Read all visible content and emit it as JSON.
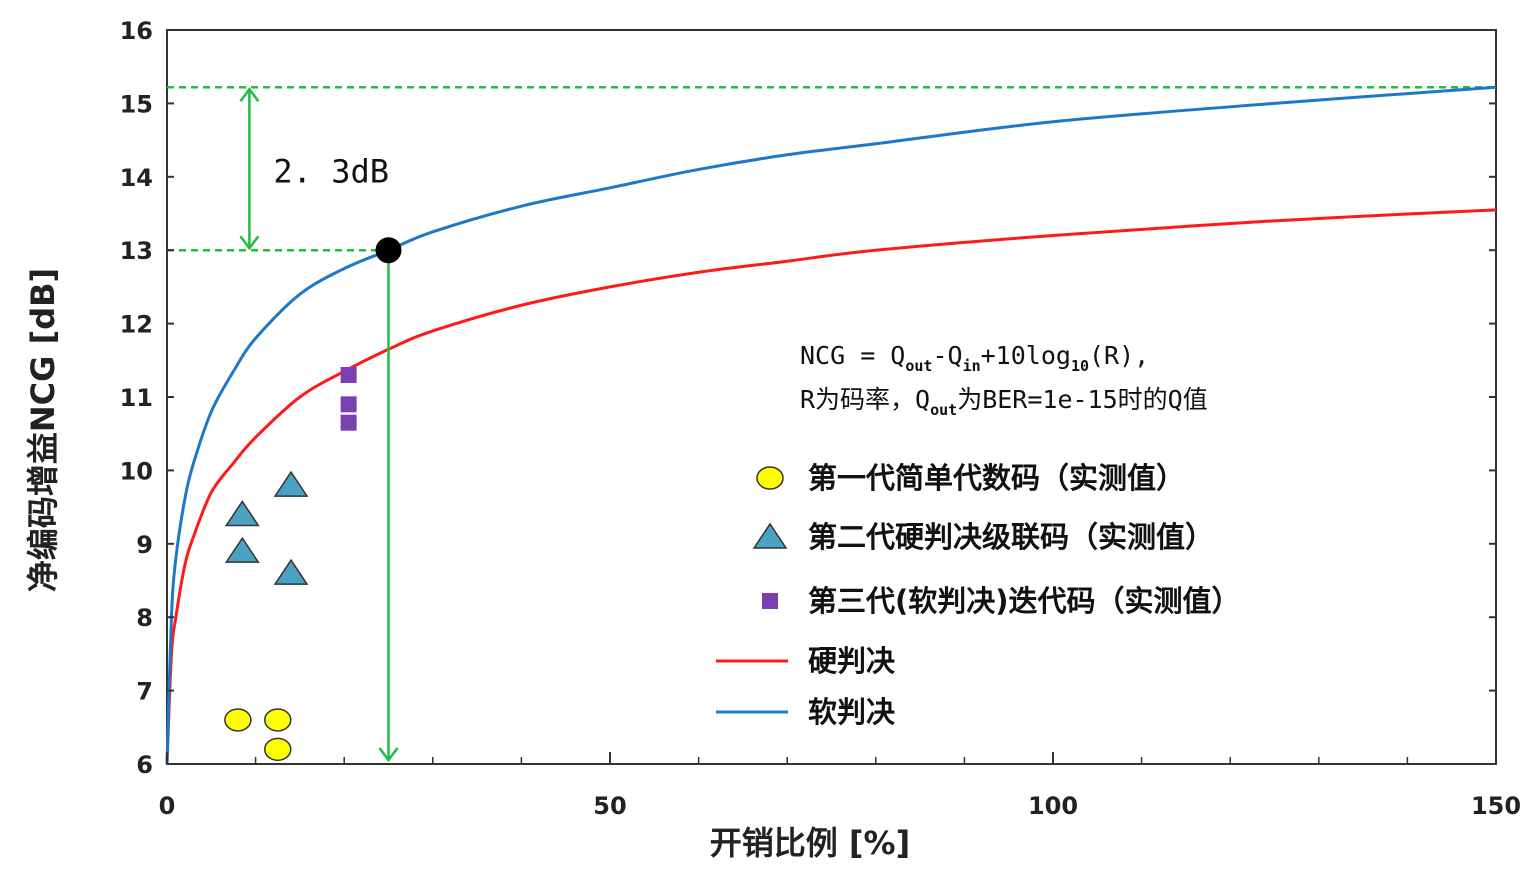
{
  "chart_data": {
    "type": "line",
    "title": "",
    "xlabel": "开销比例 [%]",
    "ylabel": "净编码增益NCG [dB]",
    "xlim": [
      0,
      150
    ],
    "ylim": [
      6,
      16
    ],
    "x_ticks": [
      0,
      50,
      100,
      150
    ],
    "y_ticks": [
      6,
      7,
      8,
      9,
      10,
      11,
      12,
      13,
      14,
      15,
      16
    ],
    "grid": false,
    "series": [
      {
        "name": "硬判决",
        "type": "line",
        "color": "#ff1a1a",
        "x": [
          0,
          0.5,
          1,
          2,
          3,
          5,
          7.5,
          10,
          15,
          20,
          25,
          30,
          40,
          50,
          60,
          70,
          80,
          100,
          125,
          150
        ],
        "y": [
          6.0,
          7.5,
          8.0,
          8.7,
          9.1,
          9.7,
          10.1,
          10.45,
          11.0,
          11.35,
          11.65,
          11.9,
          12.25,
          12.5,
          12.7,
          12.85,
          13.0,
          13.2,
          13.4,
          13.55
        ]
      },
      {
        "name": "软判决",
        "type": "line",
        "color": "#1e78c8",
        "x": [
          0,
          0.5,
          1,
          2,
          3,
          5,
          7.5,
          10,
          15,
          20,
          25,
          30,
          40,
          50,
          60,
          70,
          80,
          100,
          125,
          150
        ],
        "y": [
          6.0,
          8.0,
          8.8,
          9.6,
          10.1,
          10.8,
          11.35,
          11.8,
          12.4,
          12.75,
          13.0,
          13.25,
          13.6,
          13.85,
          14.1,
          14.3,
          14.45,
          14.75,
          15.0,
          15.22
        ]
      },
      {
        "name": "第一代简单代数码（实测值）",
        "type": "scatter",
        "marker": "circle",
        "color": "#ffff00",
        "x": [
          8,
          12.5,
          12.5
        ],
        "y": [
          6.6,
          6.6,
          6.2
        ]
      },
      {
        "name": "第二代硬判决级联码（实测值）",
        "type": "scatter",
        "marker": "triangle",
        "color": "#4ba3c3",
        "x": [
          8.5,
          8.5,
          14,
          14
        ],
        "y": [
          9.4,
          8.9,
          9.8,
          8.6
        ]
      },
      {
        "name": "第三代(软判决)迭代码（实测值）",
        "type": "scatter",
        "marker": "square",
        "color": "#7b3fb0",
        "x": [
          20.5,
          20.5,
          20.5
        ],
        "y": [
          11.3,
          10.9,
          10.65
        ]
      }
    ],
    "annotations": {
      "reference_lines_y": [
        15.22,
        13.0
      ],
      "reference_line_color": "#22bb44",
      "gap_label": "2. 3dB",
      "gap_arrow_x": 9.3,
      "marker_point": {
        "x": 25,
        "y": 13.0
      },
      "vertical_arrow": {
        "x": 25,
        "y_from": 13.0,
        "y_to": 6.0
      },
      "formula_line1_parts": [
        "NCG = Q",
        "out",
        "-Q",
        "in",
        "+10log",
        "10",
        "(R),"
      ],
      "formula_line2_parts": [
        "R为码率，Q",
        "out",
        "为BER=1e-15时的Q值"
      ]
    },
    "legend_position": "right",
    "legend": [
      {
        "label": "第一代简单代数码（实测值）",
        "symbol": "circle",
        "color": "#ffff00"
      },
      {
        "label": "第二代硬判决级联码（实测值）",
        "symbol": "triangle",
        "color": "#4ba3c3"
      },
      {
        "label": "第三代(软判决)迭代码（实测值）",
        "symbol": "square",
        "color": "#7b3fb0"
      },
      {
        "label": "硬判决",
        "symbol": "line",
        "color": "#ff1a1a"
      },
      {
        "label": "软判决",
        "symbol": "line",
        "color": "#1e78c8"
      }
    ]
  }
}
